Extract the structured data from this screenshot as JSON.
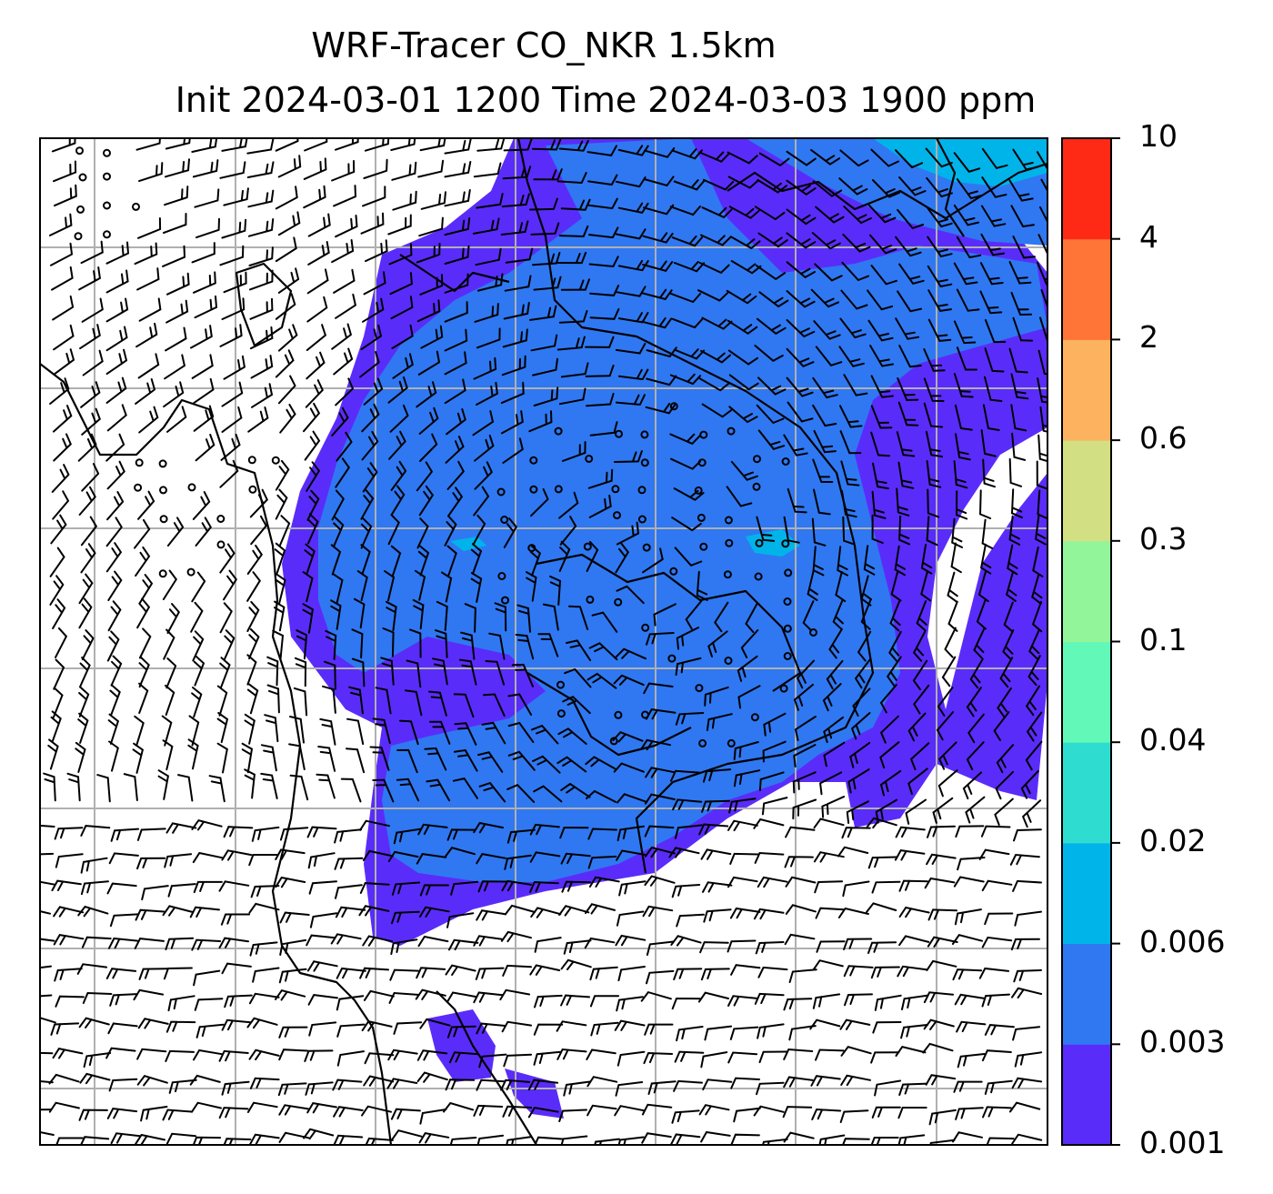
{
  "title": {
    "line1": "WRF-Tracer CO_NKR 1.5km",
    "line2": "Init 2024-03-01 1200 Time 2024-03-03 1900 ppm"
  },
  "colorbar": {
    "levels": [
      "0.001",
      "0.003",
      "0.006",
      "0.02",
      "0.04",
      "0.1",
      "0.3",
      "0.6",
      "2",
      "4",
      "10"
    ],
    "colors": [
      "#5a2cfa",
      "#2f78f2",
      "#00b4ea",
      "#2fdcd0",
      "#62f8b8",
      "#93f59a",
      "#d2e083",
      "#fdb25f",
      "#ff7537",
      "#ff2a16"
    ]
  },
  "colors": {
    "frame": "#000000",
    "gridlines": "#b0b0b0",
    "barbs": "#000000",
    "coastline": "#000000",
    "background": "#ffffff"
  },
  "map_layers": [
    "CO tracer filled contours",
    "wind barbs",
    "coastlines",
    "lat/lon gridlines"
  ]
}
